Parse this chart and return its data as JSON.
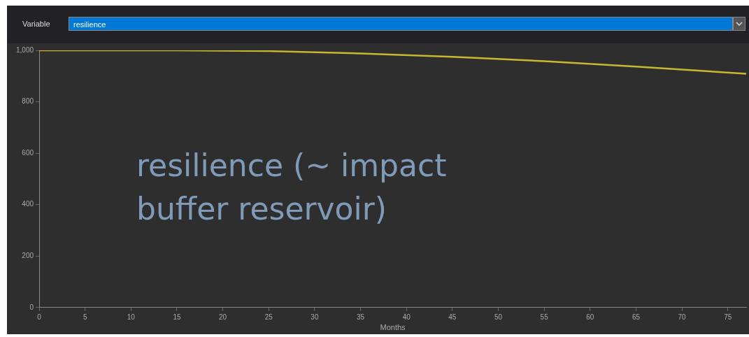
{
  "chart_data": {
    "type": "line",
    "xlabel": "Months",
    "annotations": [
      "Variable",
      "resilience",
      "resilience (~ impact buffer reservoir)"
    ],
    "x": [
      0,
      15,
      25,
      35,
      45,
      55,
      65,
      77
    ],
    "series": [
      {
        "color": "#c8b830",
        "values": [
          1000,
          1000,
          997,
          988,
          975,
          958,
          937,
          909
        ]
      }
    ],
    "xlim": [
      0,
      77
    ],
    "xticks": [
      0,
      5,
      10,
      15,
      20,
      25,
      30,
      35,
      40,
      45,
      50,
      55,
      60,
      65,
      70,
      75
    ],
    "ylim": [
      0,
      1000
    ],
    "yticks": [
      0,
      200,
      400,
      600,
      800,
      {
        "value": 1000,
        "label": "1,000"
      }
    ],
    "grid": false,
    "legend": false,
    "marker": "none",
    "line_style": "solid"
  }
}
